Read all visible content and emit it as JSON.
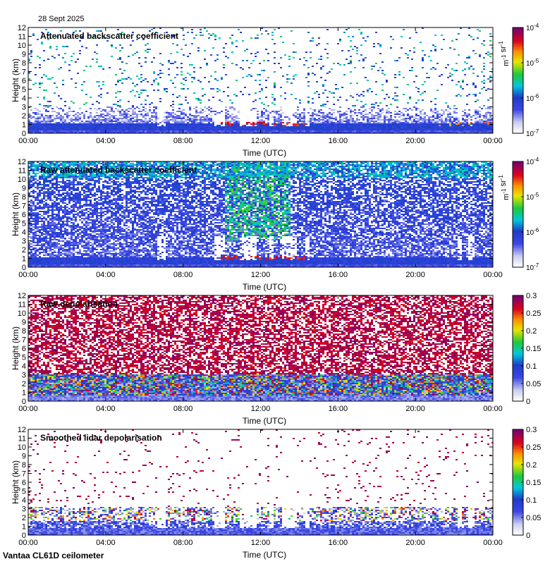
{
  "date_label": "28 Sept 2025",
  "footer_label": "Vantaa CL61D ceilometer",
  "chart_data": [
    {
      "type": "heatmap",
      "title": "Attenuated backscatter coefficient",
      "xlabel": "Time (UTC)",
      "ylabel": "Height (km)",
      "x_ticks": [
        "00:00",
        "04:00",
        "08:00",
        "12:00",
        "16:00",
        "20:00",
        "00:00"
      ],
      "y_ticks": [
        "0",
        "1",
        "2",
        "3",
        "4",
        "5",
        "6",
        "7",
        "8",
        "9",
        "10",
        "11",
        "12"
      ],
      "ylim": [
        0,
        12
      ],
      "colorbar": {
        "scale": "log",
        "ticks": [
          "10-7",
          "10-6",
          "10-5",
          "10-4"
        ],
        "unit": "m-1 sr-1"
      },
      "pattern": "backscatter_clean"
    },
    {
      "type": "heatmap",
      "title": "Raw attenuated backscatter coefficient",
      "xlabel": "Time (UTC)",
      "ylabel": "Height (km)",
      "x_ticks": [
        "00:00",
        "04:00",
        "08:00",
        "12:00",
        "16:00",
        "20:00",
        "00:00"
      ],
      "y_ticks": [
        "0",
        "1",
        "2",
        "3",
        "4",
        "5",
        "6",
        "7",
        "8",
        "9",
        "10",
        "11",
        "12"
      ],
      "ylim": [
        0,
        12
      ],
      "colorbar": {
        "scale": "log",
        "ticks": [
          "10-7",
          "10-6",
          "10-5",
          "10-4"
        ],
        "unit": "m-1 sr-1"
      },
      "pattern": "backscatter_raw"
    },
    {
      "type": "heatmap",
      "title": "Raw depolarisation",
      "xlabel": "Time (UTC)",
      "ylabel": "Height (km)",
      "x_ticks": [
        "00:00",
        "04:00",
        "08:00",
        "12:00",
        "16:00",
        "20:00",
        "00:00"
      ],
      "y_ticks": [
        "0",
        "1",
        "2",
        "3",
        "4",
        "5",
        "6",
        "7",
        "8",
        "9",
        "10",
        "11",
        "12"
      ],
      "ylim": [
        0,
        12
      ],
      "colorbar": {
        "scale": "linear",
        "ticks": [
          "0",
          "0.05",
          "0.1",
          "0.15",
          "0.2",
          "0.25",
          "0.3"
        ],
        "range": [
          0,
          0.3
        ]
      },
      "pattern": "depol_raw"
    },
    {
      "type": "heatmap",
      "title": "Smoothed lidar depolarisation",
      "xlabel": "Time (UTC)",
      "ylabel": "Height (km)",
      "x_ticks": [
        "00:00",
        "04:00",
        "08:00",
        "12:00",
        "16:00",
        "20:00",
        "00:00"
      ],
      "y_ticks": [
        "0",
        "1",
        "2",
        "3",
        "4",
        "5",
        "6",
        "7",
        "8",
        "9",
        "10",
        "11",
        "12"
      ],
      "ylim": [
        0,
        12
      ],
      "colorbar": {
        "scale": "linear",
        "ticks": [
          "0",
          "0.05",
          "0.1",
          "0.15",
          "0.2",
          "0.25",
          "0.3"
        ],
        "range": [
          0,
          0.3
        ]
      },
      "pattern": "depol_smooth"
    }
  ]
}
